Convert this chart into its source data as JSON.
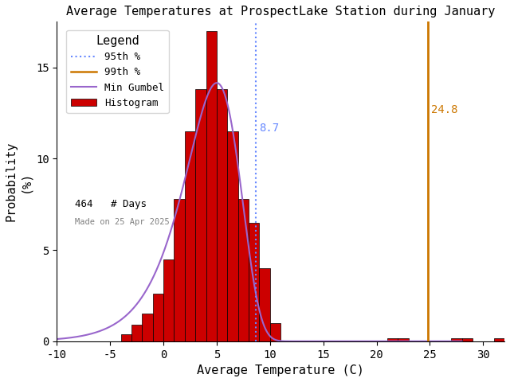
{
  "title": "Average Temperatures at ProspectLake Station during January",
  "xlabel": "Average Temperature (C)",
  "ylabel": "Probability",
  "ylabel2": "(%)",
  "xlim": [
    -10,
    32
  ],
  "ylim": [
    0,
    17.5
  ],
  "bar_lefts": [
    -8,
    -7,
    -6,
    -5,
    -4,
    -3,
    -2,
    -1,
    0,
    1,
    2,
    3,
    4,
    5,
    6,
    7,
    8,
    9,
    10,
    11,
    12,
    21,
    22,
    27,
    28,
    31
  ],
  "bar_heights": [
    0.0,
    0.0,
    0.0,
    0.0,
    0.4,
    0.9,
    1.5,
    2.6,
    4.5,
    7.8,
    11.5,
    13.8,
    17.0,
    13.8,
    11.5,
    7.8,
    6.5,
    4.0,
    1.0,
    0.0,
    0.0,
    0.15,
    0.15,
    0.15,
    0.15,
    0.15
  ],
  "bar_color": "#cc0000",
  "bar_edgecolor": "#000000",
  "percentile_95": 8.7,
  "percentile_99": 24.8,
  "gumbel_mu": 5.0,
  "gumbel_beta": 2.6,
  "gumbel_scale": 100.0,
  "n_days": 464,
  "legend_title": "Legend",
  "made_on": "Made on 25 Apr 2025",
  "p95_color": "#6688ff",
  "p99_color": "#cc7700",
  "gumbel_color": "#9966cc",
  "background_color": "#ffffff",
  "title_fontsize": 11,
  "axis_fontsize": 11,
  "tick_fontsize": 10
}
